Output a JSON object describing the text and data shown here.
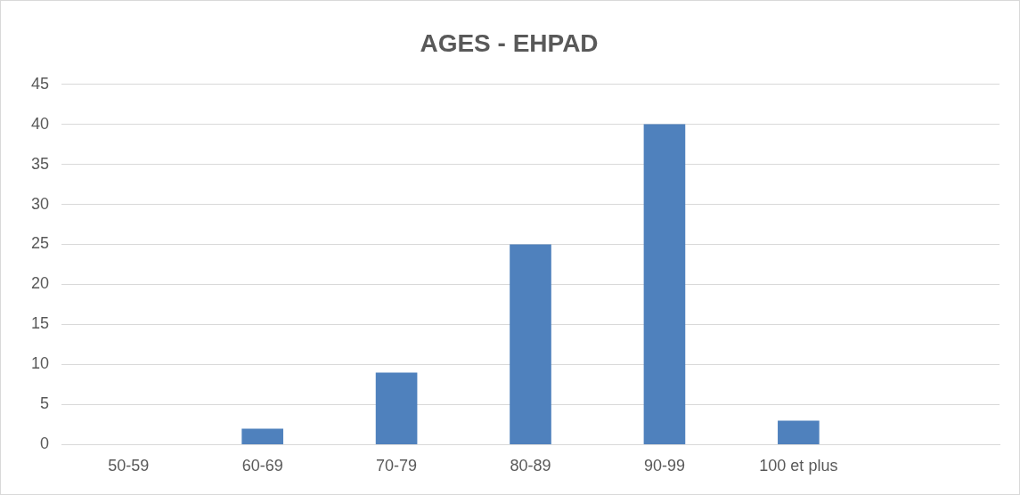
{
  "chart_data": {
    "type": "bar",
    "title": "AGES - EHPAD",
    "categories": [
      "50-59",
      "60-69",
      "70-79",
      "80-89",
      "90-99",
      "100 et plus",
      null
    ],
    "values": [
      0,
      2,
      9,
      25,
      40,
      3,
      null
    ],
    "color": "#4f81bd",
    "ylim": [
      0,
      45
    ],
    "yticks": [
      0,
      5,
      10,
      15,
      20,
      25,
      30,
      35,
      40,
      45
    ],
    "grid": "y",
    "legend": false
  }
}
